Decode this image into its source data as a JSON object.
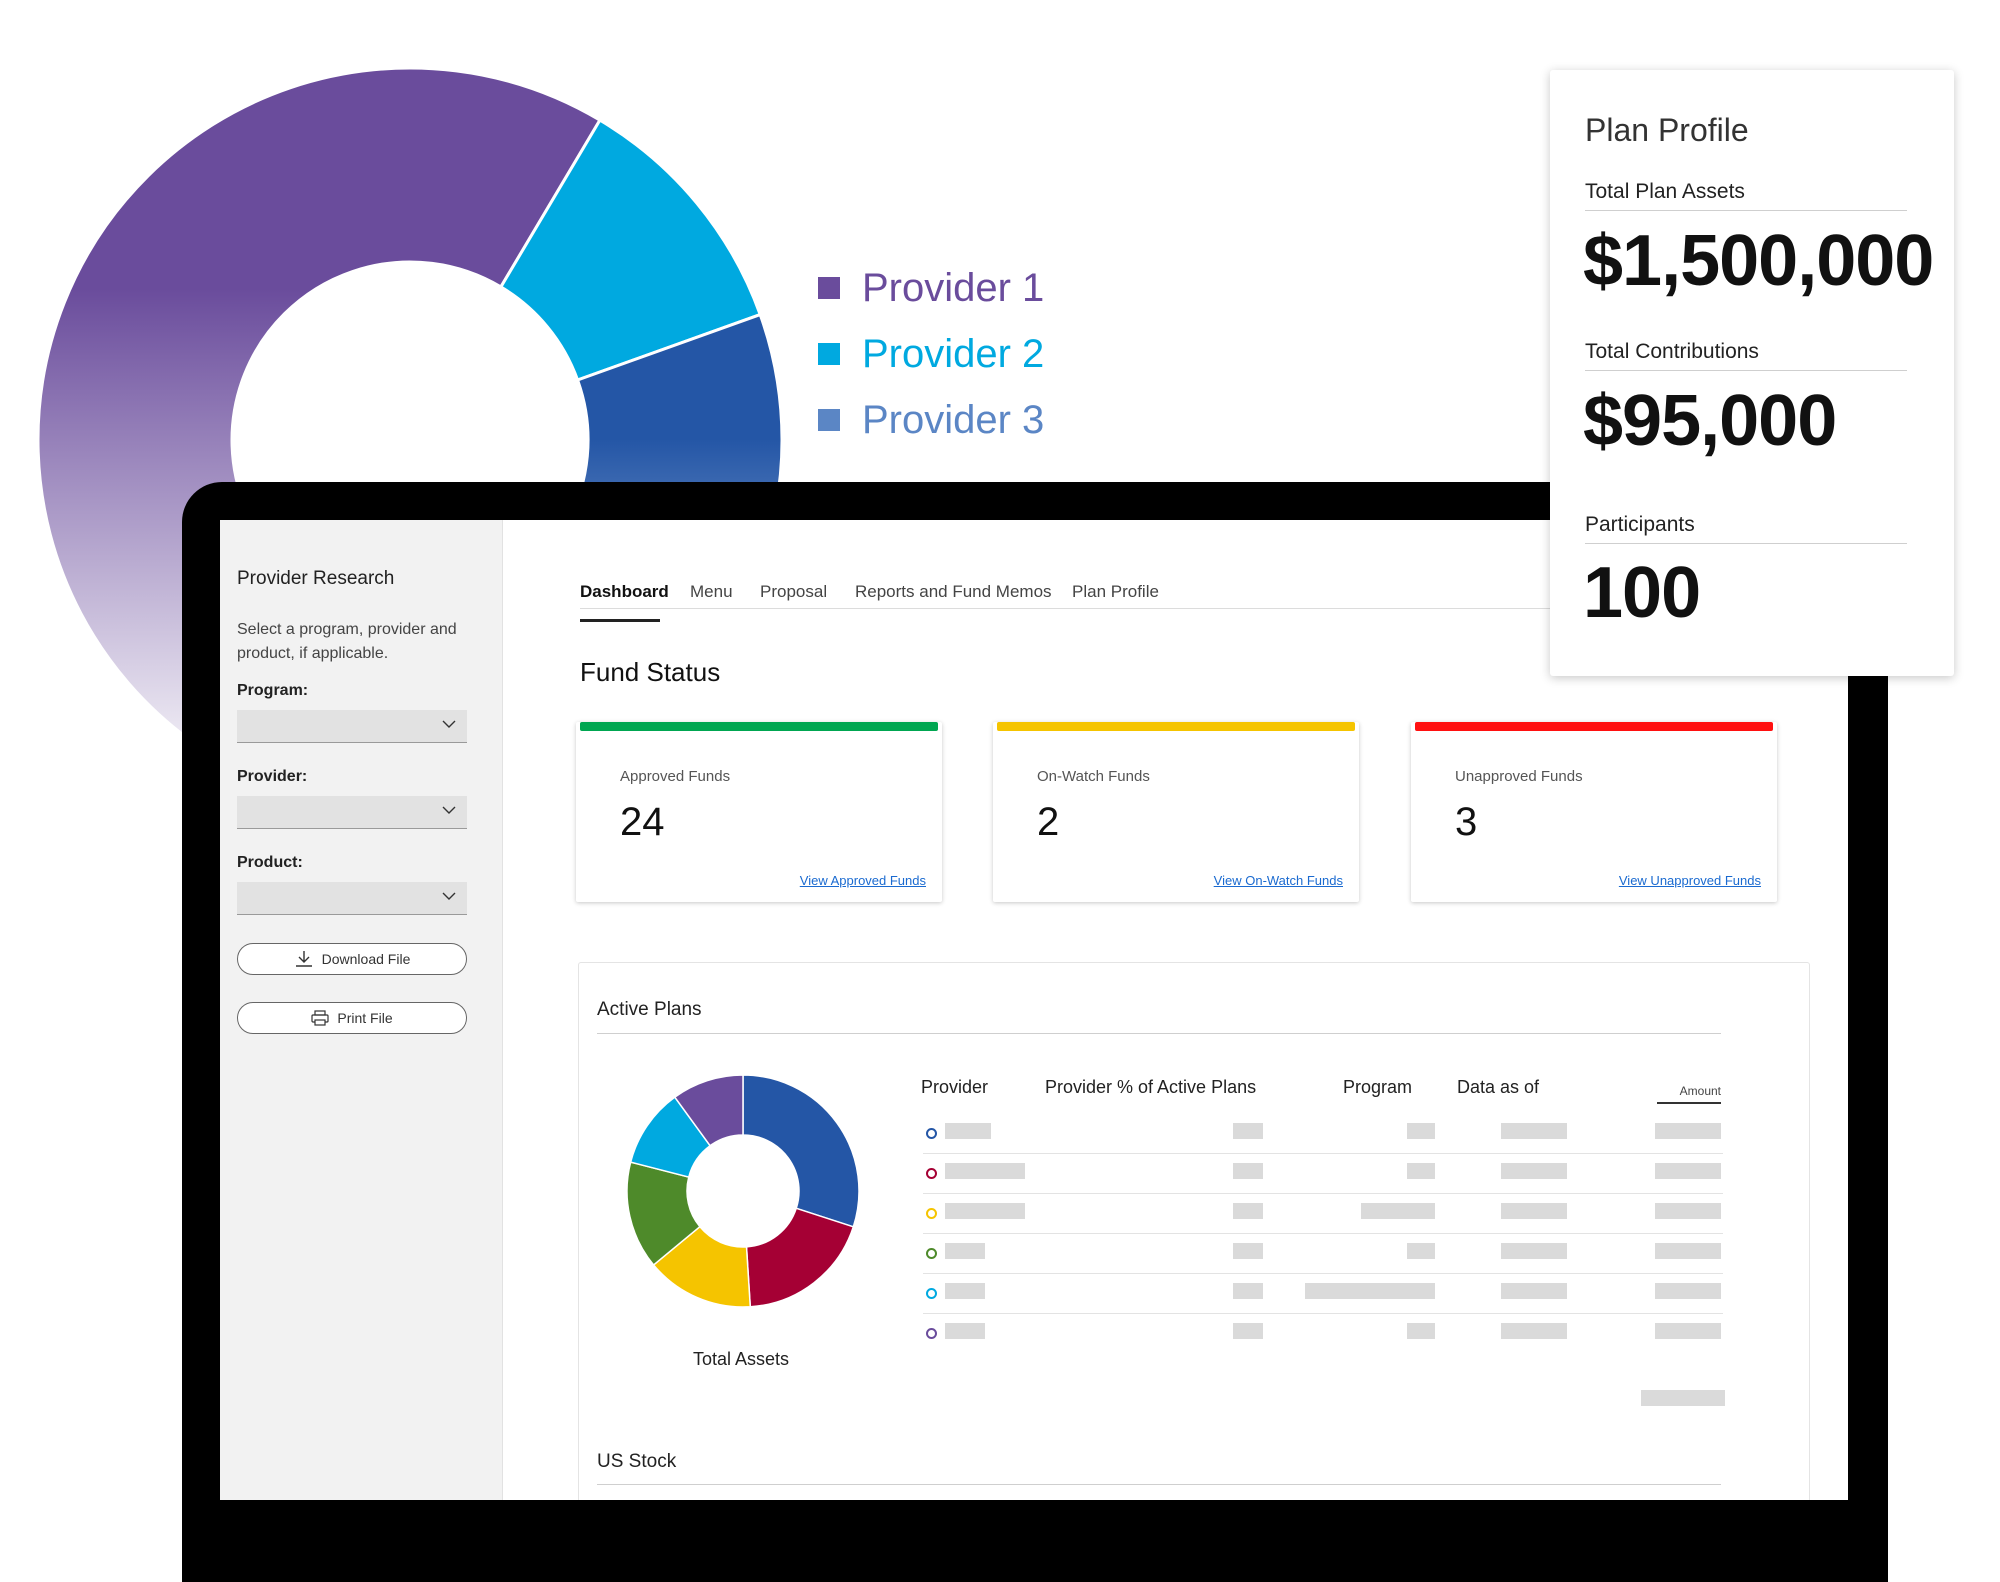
{
  "background_chart": {
    "chart_data": {
      "type": "pie",
      "series": [
        {
          "name": "Provider 1",
          "value": 55,
          "color": "#6a4c9c"
        },
        {
          "name": "Provider 2",
          "value": 11,
          "color": "#00a9e0"
        },
        {
          "name": "Provider 3",
          "value": 34,
          "color": "#2456a6"
        }
      ]
    },
    "legend": [
      {
        "label": "Provider 1",
        "color": "#6a4c9c"
      },
      {
        "label": "Provider 2",
        "color": "#00a9e0"
      },
      {
        "label": "Provider 3",
        "color": "#5b86c5"
      }
    ]
  },
  "sidebar": {
    "title": "Provider Research",
    "description": "Select a program, provider and product, if applicable.",
    "program_label": "Program:",
    "provider_label": "Provider:",
    "product_label": "Product:",
    "download_label": "Download File",
    "print_label": "Print File",
    "icons": [
      "download-icon",
      "print-icon",
      "chevron-down-icon"
    ]
  },
  "tabs": [
    "Dashboard",
    "Menu",
    "Proposal",
    "Reports and Fund Memos",
    "Plan Profile"
  ],
  "fund_status": {
    "title": "Fund Status",
    "cards": [
      {
        "label": "Approved Funds",
        "value": "24",
        "link": "View Approved Funds",
        "color": "#00a651"
      },
      {
        "label": "On-Watch Funds",
        "value": "2",
        "link": "View On-Watch Funds",
        "color": "#f5c400"
      },
      {
        "label": "Unapproved Funds",
        "value": "3",
        "link": "View Unapproved Funds",
        "color": "#ff1010"
      }
    ]
  },
  "active_plans": {
    "title": "Active Plans",
    "donut_caption": "Total Assets",
    "chart_data": {
      "type": "pie",
      "series": [
        {
          "value": 30,
          "color": "#2456a6"
        },
        {
          "value": 19,
          "color": "#a50034"
        },
        {
          "value": 15,
          "color": "#f5c400"
        },
        {
          "value": 15,
          "color": "#4e8a2a"
        },
        {
          "value": 11,
          "color": "#00a9e0"
        },
        {
          "value": 10,
          "color": "#6a4c9c"
        }
      ]
    },
    "columns": [
      "Provider",
      "Provider % of Active Plans",
      "Program",
      "Data as of",
      "Amount"
    ],
    "row_colors": [
      "#2456a6",
      "#a50034",
      "#f5c400",
      "#4e8a2a",
      "#00a9e0",
      "#6a4c9c"
    ]
  },
  "us_stock": {
    "title": "US Stock"
  },
  "plan_profile": {
    "title": "Plan Profile",
    "assets_label": "Total Plan Assets",
    "assets_value": "$1,500,000",
    "contrib_label": "Total Contributions",
    "contrib_value": "$95,000",
    "participants_label": "Participants",
    "participants_value": "100"
  }
}
